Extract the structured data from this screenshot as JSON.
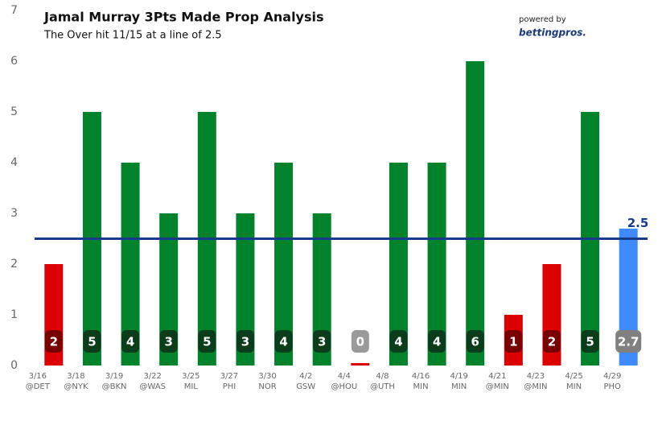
{
  "chart_data": {
    "type": "bar",
    "title": "Jamal Murray 3Pts Made Prop Analysis",
    "subtitle": "The Over hit 11/15 at a line of 2.5",
    "branding": {
      "prefix": "powered by",
      "name": "bettingpros."
    },
    "categories": [
      "3/16",
      "3/18",
      "3/19",
      "3/22",
      "3/25",
      "3/27",
      "3/30",
      "4/2",
      "4/4",
      "4/8",
      "4/16",
      "4/19",
      "4/21",
      "4/23",
      "4/25",
      "4/29"
    ],
    "opponents": [
      "@DET",
      "@NYK",
      "@BKN",
      "@WAS",
      "MIL",
      "PHI",
      "NOR",
      "GSW",
      "@HOU",
      "@UTH",
      "MIN",
      "MIN",
      "@MIN",
      "@MIN",
      "MIN",
      "PHO"
    ],
    "values": [
      2,
      5,
      4,
      3,
      5,
      3,
      4,
      3,
      0,
      4,
      4,
      6,
      1,
      2,
      5,
      2.7
    ],
    "colors": [
      "#dd0000",
      "#00832a",
      "#00832a",
      "#00832a",
      "#00832a",
      "#00832a",
      "#00832a",
      "#00832a",
      "#dd0000",
      "#00832a",
      "#00832a",
      "#00832a",
      "#dd0000",
      "#dd0000",
      "#00832a",
      "#3d8bff"
    ],
    "label_colors": [
      "#7a0000",
      "#0b3d1b",
      "#0b3d1b",
      "#0b3d1b",
      "#0b3d1b",
      "#0b3d1b",
      "#0b3d1b",
      "#0b3d1b",
      "#9a9a9a",
      "#0b3d1b",
      "#0b3d1b",
      "#0b3d1b",
      "#7a0000",
      "#7a0000",
      "#0b3d1b",
      "#808080"
    ],
    "reference_line": {
      "value": 2.5,
      "color": "#173a8c"
    },
    "ylim": [
      0,
      7
    ],
    "yticks": [
      0,
      1,
      2,
      3,
      4,
      5,
      6,
      7
    ],
    "grid": false
  }
}
